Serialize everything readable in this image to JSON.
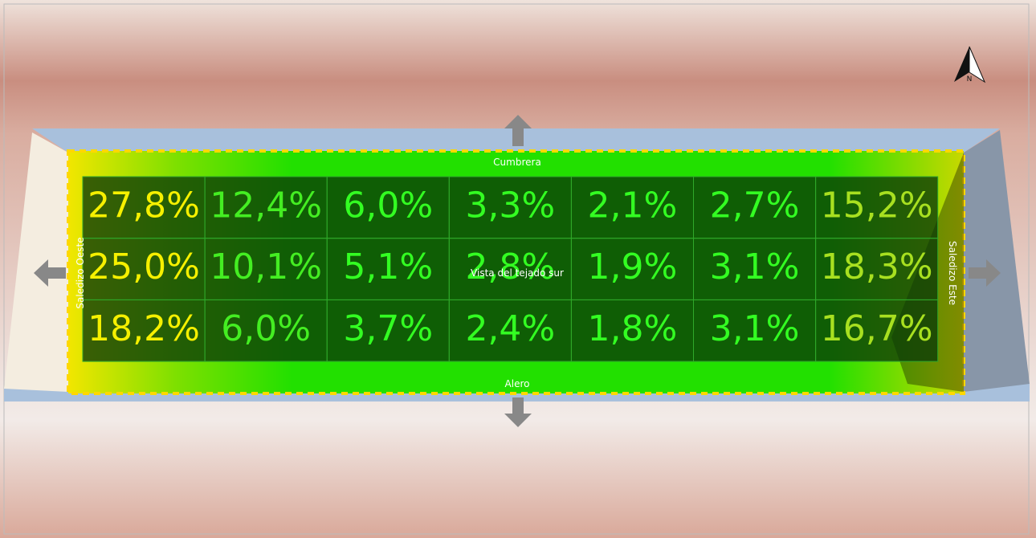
{
  "view": {
    "title": "Vista del tejado sur",
    "compass": "N",
    "edges": {
      "top": "Cumbrera",
      "bottom": "Alero",
      "left": "Saledizo Oeste",
      "right": "Saledizo Este"
    },
    "grid": {
      "rows": [
        [
          "27,8%",
          "12,4%",
          "6,0%",
          "3,3%",
          "2,1%",
          "2,7%",
          "15,2%"
        ],
        [
          "25,0%",
          "10,1%",
          "5,1%",
          "2,8%",
          "1,9%",
          "3,1%",
          "18,3%"
        ],
        [
          "18,2%",
          "6,0%",
          "3,7%",
          "2,4%",
          "1,8%",
          "3,1%",
          "16,7%"
        ]
      ]
    }
  }
}
